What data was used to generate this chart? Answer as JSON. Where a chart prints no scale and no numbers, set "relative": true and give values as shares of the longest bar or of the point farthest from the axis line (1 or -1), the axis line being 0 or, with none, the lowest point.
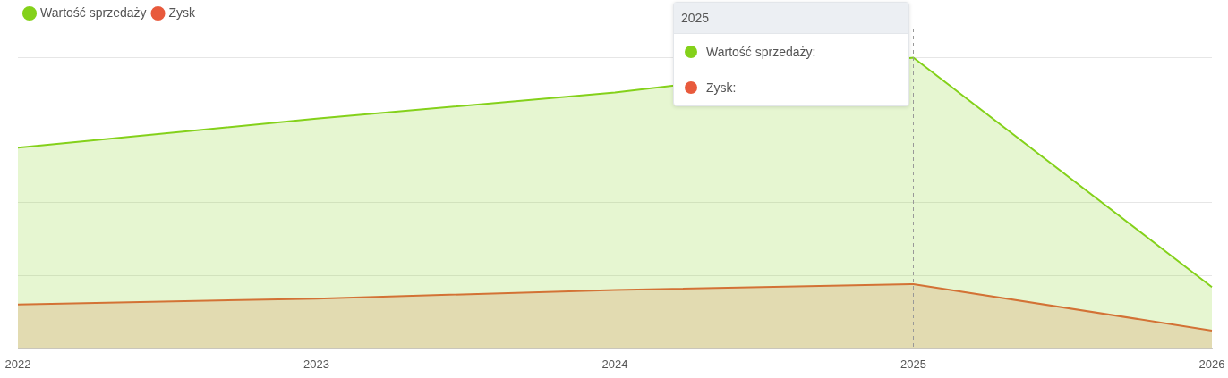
{
  "chart_data": {
    "type": "area",
    "relative": true,
    "categories": [
      "2022",
      "2023",
      "2024",
      "2025",
      "2026"
    ],
    "series": [
      {
        "name": "Wartość sprzedaży",
        "color": "#84d11a",
        "values": [
          0.69,
          0.79,
          0.88,
          1,
          0.21
        ]
      },
      {
        "name": "Zysk",
        "color": "#e85a3c",
        "values": [
          0.15,
          0.17,
          0.2,
          0.22,
          0.06
        ]
      }
    ],
    "legend": "top left",
    "grid": "y",
    "marker": "none",
    "ref_lines": [
      {
        "axis": "x",
        "value": "2025",
        "line_style": "dashed",
        "color": "#999999"
      }
    ],
    "annotations": [
      "2025",
      "Wartość sprzedaży:",
      "Zysk:"
    ]
  }
}
